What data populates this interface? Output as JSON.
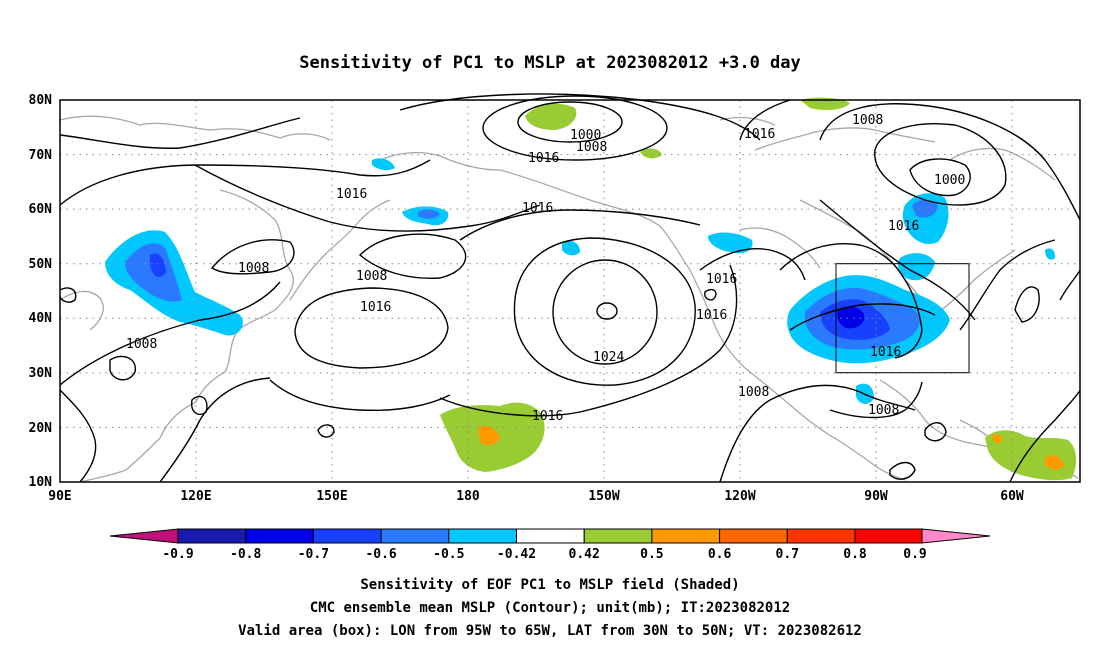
{
  "title": "Sensitivity of PC1 to MSLP at 2023082012 +3.0 day",
  "map": {
    "lat_labels": [
      "80N",
      "70N",
      "60N",
      "50N",
      "40N",
      "30N",
      "20N",
      "10N"
    ],
    "lon_labels": [
      "90E",
      "120E",
      "150E",
      "180",
      "150W",
      "120W",
      "90W",
      "60W"
    ],
    "contour_labels": [
      {
        "id": "c1000a",
        "text": "1000"
      },
      {
        "id": "c1008a",
        "text": "1008"
      },
      {
        "id": "c1016a",
        "text": "1016"
      },
      {
        "id": "c1016b",
        "text": "1016"
      },
      {
        "id": "c1016c",
        "text": "1016"
      },
      {
        "id": "c1008b",
        "text": "1008"
      },
      {
        "id": "c1008c",
        "text": "1008"
      },
      {
        "id": "c1016d",
        "text": "1016"
      },
      {
        "id": "c1008d",
        "text": "1008"
      },
      {
        "id": "c1024",
        "text": "1024"
      },
      {
        "id": "c1016e",
        "text": "1016"
      },
      {
        "id": "c1016f",
        "text": "1016"
      },
      {
        "id": "c1016g",
        "text": "1016"
      },
      {
        "id": "c1008e",
        "text": "1008"
      },
      {
        "id": "c1016h",
        "text": "1016"
      },
      {
        "id": "c1008f",
        "text": "1008"
      },
      {
        "id": "c1000b",
        "text": "1000"
      },
      {
        "id": "c1016i",
        "text": "1016"
      },
      {
        "id": "c1016j",
        "text": "1016"
      },
      {
        "id": "c1008g",
        "text": "1008"
      }
    ]
  },
  "colorbar": {
    "labels": [
      "-0.9",
      "-0.8",
      "-0.7",
      "-0.6",
      "-0.5",
      "-0.42",
      "0.42",
      "0.5",
      "0.6",
      "0.7",
      "0.8",
      "0.9"
    ],
    "colors": [
      "#c0107a",
      "#1a1ab0",
      "#0000e6",
      "#1840ff",
      "#2a7aff",
      "#00c8ff",
      "#ffffff",
      "#99cc33",
      "#ff9900",
      "#ff6600",
      "#ff3300",
      "#ff0000",
      "#ff88cc"
    ]
  },
  "captions": {
    "line1": "Sensitivity of EOF PC1 to MSLP field (Shaded)",
    "line2": "CMC ensemble mean MSLP (Contour); unit(mb); IT:2023082012",
    "line3": "Valid area (box): LON from 95W to 65W, LAT from 30N to 50N; VT: 2023082612"
  }
}
